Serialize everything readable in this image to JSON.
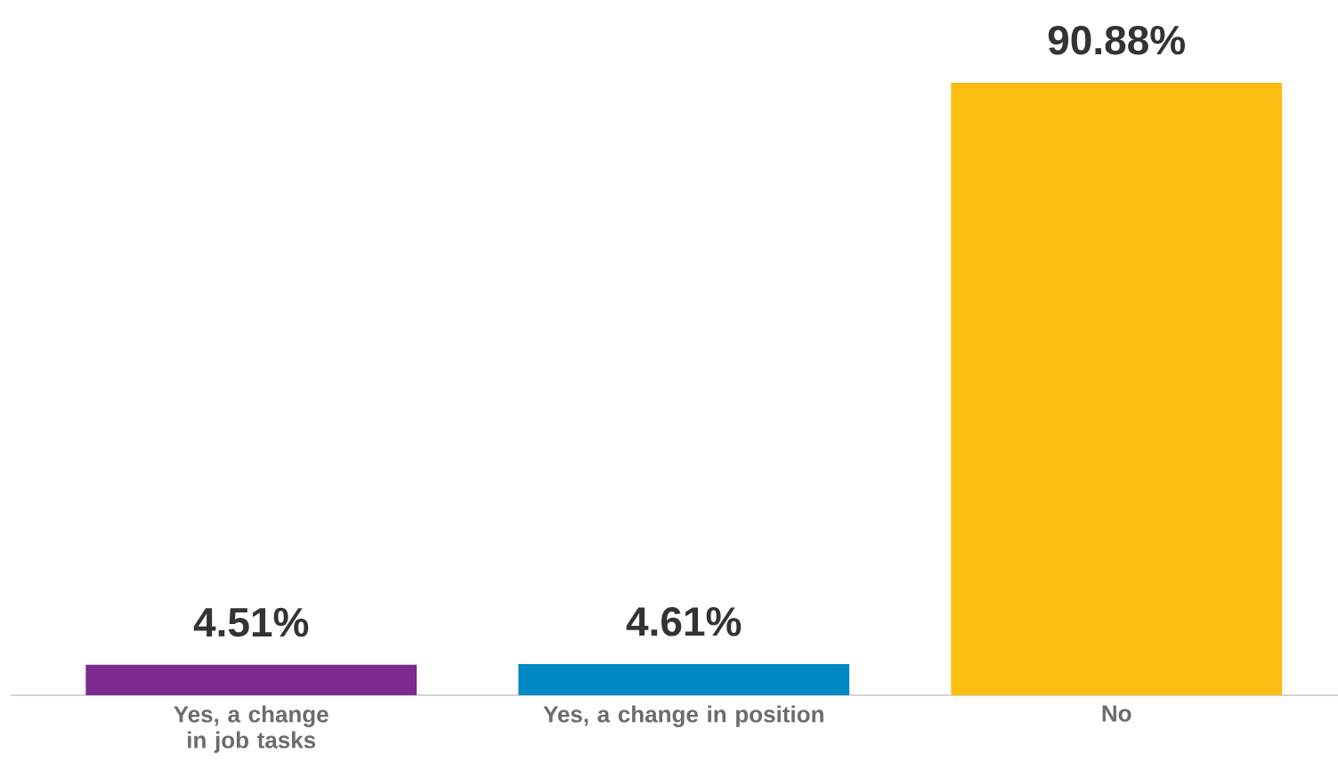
{
  "chart_data": {
    "type": "bar",
    "categories": [
      "Yes, a change in job tasks",
      "Yes, a change in position",
      "No"
    ],
    "values": [
      4.51,
      4.61,
      90.88
    ],
    "colors": [
      "#7f2a8e",
      "#0088c2",
      "#fbbd12"
    ],
    "value_labels": [
      "4.51%",
      "4.61%",
      "90.88%"
    ]
  }
}
